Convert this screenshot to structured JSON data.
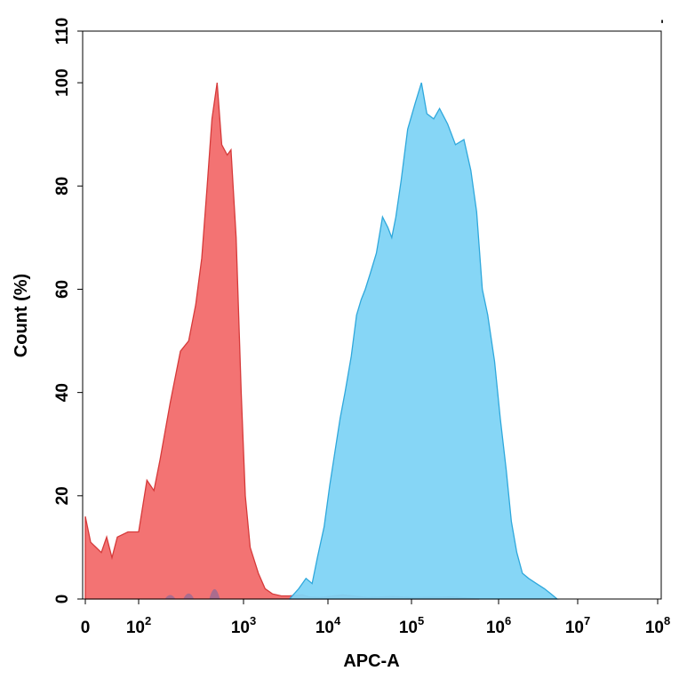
{
  "chart_data": {
    "type": "area",
    "title": "",
    "xlabel": "APC-A",
    "ylabel": "Count (%)",
    "x_scale": "biexponential (0, 10^2 ... 10^8)",
    "ylim": [
      0,
      110
    ],
    "y_ticks": [
      0,
      20,
      40,
      60,
      80,
      100,
      110
    ],
    "x_ticks": [
      {
        "value": 0,
        "base": "0",
        "exp": ""
      },
      {
        "value": 100,
        "base": "10",
        "exp": "2"
      },
      {
        "value": 1000,
        "base": "10",
        "exp": "3"
      },
      {
        "value": 10000,
        "base": "10",
        "exp": "4"
      },
      {
        "value": 100000,
        "base": "10",
        "exp": "5"
      },
      {
        "value": 1000000,
        "base": "10",
        "exp": "6"
      },
      {
        "value": 10000000,
        "base": "10",
        "exp": "7"
      },
      {
        "value": 100000000,
        "base": "10",
        "exp": "8"
      }
    ],
    "grid": false,
    "series": [
      {
        "color": "#f26b6b",
        "stroke": "#d63a3a",
        "points": [
          [
            0,
            16
          ],
          [
            10,
            11
          ],
          [
            20,
            10
          ],
          [
            30,
            9
          ],
          [
            40,
            12
          ],
          [
            50,
            8
          ],
          [
            60,
            12
          ],
          [
            80,
            13
          ],
          [
            100,
            13
          ],
          [
            120,
            23
          ],
          [
            140,
            21
          ],
          [
            160,
            27
          ],
          [
            200,
            38
          ],
          [
            250,
            48
          ],
          [
            300,
            50
          ],
          [
            350,
            57
          ],
          [
            400,
            66
          ],
          [
            450,
            80
          ],
          [
            500,
            93
          ],
          [
            560,
            100
          ],
          [
            620,
            88
          ],
          [
            700,
            86
          ],
          [
            760,
            87
          ],
          [
            850,
            70
          ],
          [
            950,
            40
          ],
          [
            1050,
            20
          ],
          [
            1200,
            10
          ],
          [
            1500,
            5
          ],
          [
            1800,
            2
          ],
          [
            2200,
            1
          ],
          [
            2800,
            0.6
          ],
          [
            3500,
            0.6
          ],
          [
            5000,
            0.8
          ],
          [
            6000,
            0.4
          ],
          [
            8000,
            0.3
          ],
          [
            15000,
            0.8
          ],
          [
            30000,
            0.3
          ],
          [
            60000,
            0.5
          ],
          [
            100000,
            0.3
          ],
          [
            300000,
            0.4
          ],
          [
            600000,
            0
          ]
        ]
      },
      {
        "color": "#7fd4f5",
        "stroke": "#2fa8dc",
        "points": [
          [
            3500,
            0
          ],
          [
            4500,
            2
          ],
          [
            5500,
            4
          ],
          [
            6500,
            3
          ],
          [
            7500,
            8
          ],
          [
            9000,
            14
          ],
          [
            10500,
            22
          ],
          [
            12000,
            28
          ],
          [
            14000,
            35
          ],
          [
            16000,
            40
          ],
          [
            19000,
            47
          ],
          [
            22000,
            55
          ],
          [
            25000,
            58
          ],
          [
            28000,
            60
          ],
          [
            32000,
            63
          ],
          [
            38000,
            67
          ],
          [
            45000,
            74
          ],
          [
            52000,
            72
          ],
          [
            58000,
            70
          ],
          [
            65000,
            74
          ],
          [
            75000,
            81
          ],
          [
            90000,
            91
          ],
          [
            110000,
            96
          ],
          [
            130000,
            100
          ],
          [
            150000,
            94
          ],
          [
            180000,
            93
          ],
          [
            210000,
            95
          ],
          [
            260000,
            92
          ],
          [
            320000,
            88
          ],
          [
            400000,
            89
          ],
          [
            480000,
            83
          ],
          [
            560000,
            75
          ],
          [
            650000,
            60
          ],
          [
            750000,
            55
          ],
          [
            900000,
            46
          ],
          [
            1050000,
            35
          ],
          [
            1250000,
            25
          ],
          [
            1450000,
            15
          ],
          [
            1700000,
            9
          ],
          [
            2000000,
            5
          ],
          [
            2400000,
            4
          ],
          [
            3000000,
            3
          ],
          [
            3800000,
            2
          ],
          [
            4600000,
            1
          ],
          [
            5500000,
            0
          ]
        ]
      }
    ]
  },
  "top_right_mark": "'"
}
